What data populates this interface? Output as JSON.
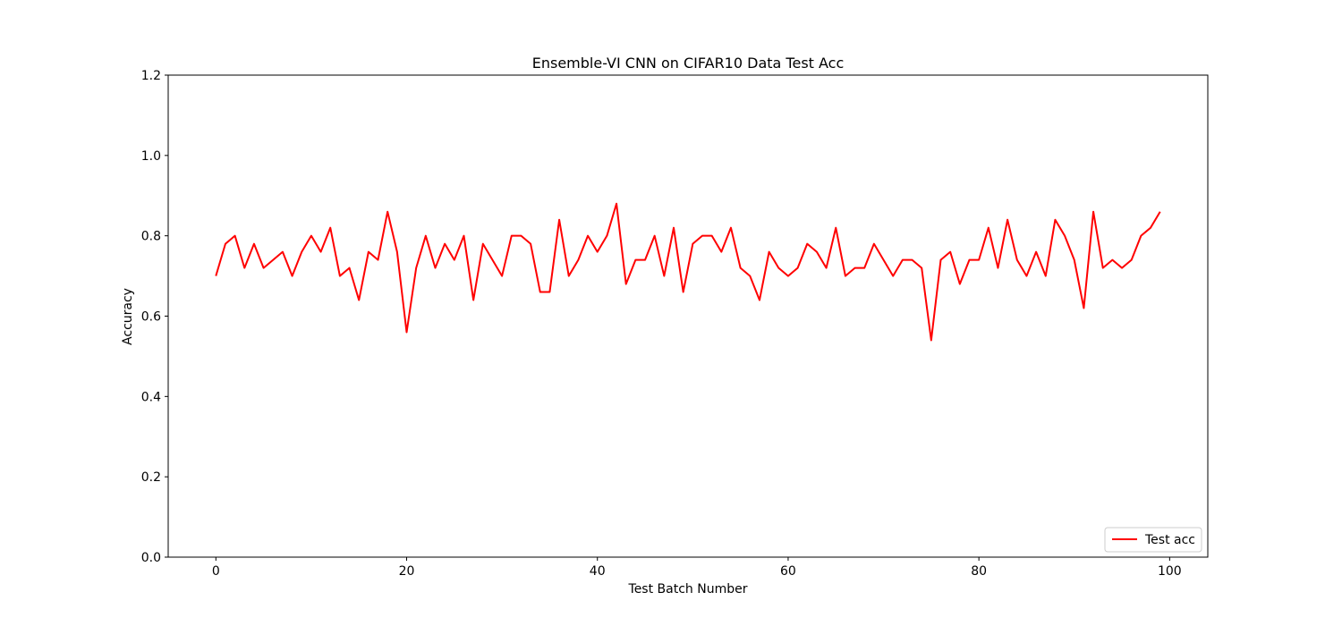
{
  "chart_data": {
    "type": "line",
    "title": "Ensemble-VI CNN on CIFAR10 Data Test Acc",
    "xlabel": "Test Batch Number",
    "ylabel": "Accuracy",
    "xlim": [
      -5,
      104
    ],
    "ylim": [
      0.0,
      1.2
    ],
    "xticks": [
      0,
      20,
      40,
      60,
      80,
      100
    ],
    "xtick_labels": [
      "0",
      "20",
      "40",
      "60",
      "80",
      "100"
    ],
    "yticks": [
      0.0,
      0.2,
      0.4,
      0.6,
      0.8,
      1.0,
      1.2
    ],
    "ytick_labels": [
      "0.0",
      "0.2",
      "0.4",
      "0.6",
      "0.8",
      "1.0",
      "1.2"
    ],
    "grid": false,
    "legend_position": "lower-right",
    "series": [
      {
        "name": "Test acc",
        "color": "#ff0000",
        "x": [
          0,
          1,
          2,
          3,
          4,
          5,
          6,
          7,
          8,
          9,
          10,
          11,
          12,
          13,
          14,
          15,
          16,
          17,
          18,
          19,
          20,
          21,
          22,
          23,
          24,
          25,
          26,
          27,
          28,
          29,
          30,
          31,
          32,
          33,
          34,
          35,
          36,
          37,
          38,
          39,
          40,
          41,
          42,
          43,
          44,
          45,
          46,
          47,
          48,
          49,
          50,
          51,
          52,
          53,
          54,
          55,
          56,
          57,
          58,
          59,
          60,
          61,
          62,
          63,
          64,
          65,
          66,
          67,
          68,
          69,
          70,
          71,
          72,
          73,
          74,
          75,
          76,
          77,
          78,
          79,
          80,
          81,
          82,
          83,
          84,
          85,
          86,
          87,
          88,
          89,
          90,
          91,
          92,
          93,
          94,
          95,
          96,
          97,
          98,
          99
        ],
        "values": [
          0.7,
          0.78,
          0.8,
          0.72,
          0.78,
          0.72,
          0.74,
          0.76,
          0.7,
          0.76,
          0.8,
          0.76,
          0.82,
          0.7,
          0.72,
          0.64,
          0.76,
          0.74,
          0.86,
          0.76,
          0.56,
          0.72,
          0.8,
          0.72,
          0.78,
          0.74,
          0.8,
          0.64,
          0.78,
          0.74,
          0.7,
          0.8,
          0.8,
          0.78,
          0.66,
          0.66,
          0.84,
          0.7,
          0.74,
          0.8,
          0.76,
          0.8,
          0.88,
          0.68,
          0.74,
          0.74,
          0.8,
          0.7,
          0.82,
          0.66,
          0.78,
          0.8,
          0.8,
          0.76,
          0.82,
          0.72,
          0.7,
          0.64,
          0.76,
          0.72,
          0.7,
          0.72,
          0.78,
          0.76,
          0.72,
          0.82,
          0.7,
          0.72,
          0.72,
          0.78,
          0.74,
          0.7,
          0.74,
          0.74,
          0.72,
          0.54,
          0.74,
          0.76,
          0.68,
          0.74,
          0.74,
          0.82,
          0.72,
          0.84,
          0.74,
          0.7,
          0.76,
          0.7,
          0.84,
          0.8,
          0.74,
          0.62,
          0.86,
          0.72,
          0.74,
          0.72,
          0.74,
          0.8,
          0.82,
          0.86
        ]
      }
    ]
  }
}
